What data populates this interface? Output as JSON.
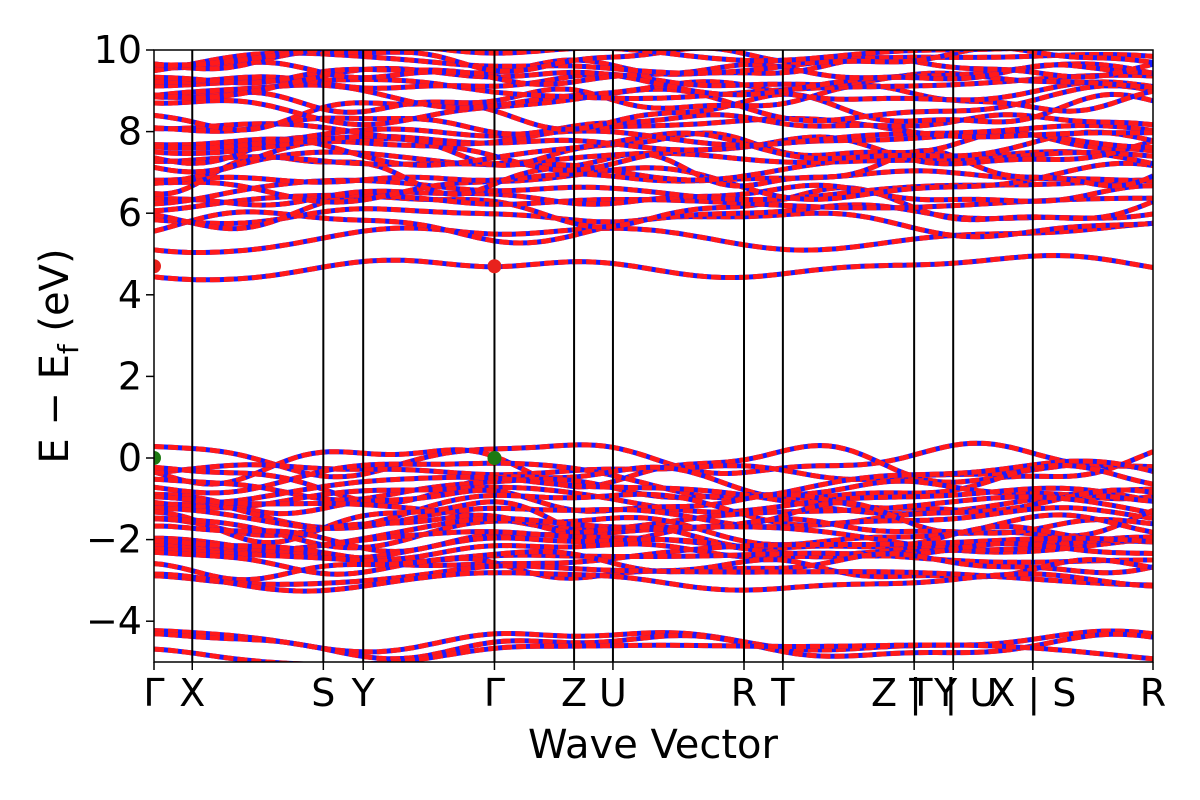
{
  "chart_data": {
    "type": "line",
    "title": "",
    "xlabel": "Wave Vector",
    "ylabel_main": "E − E",
    "ylabel_sub": "f",
    "ylabel_unit": " (eV)",
    "ylim": [
      -5,
      10
    ],
    "yticks": [
      {
        "value": -4,
        "label": "−4"
      },
      {
        "value": -2,
        "label": "−2"
      },
      {
        "value": 0,
        "label": "0"
      },
      {
        "value": 2,
        "label": "2"
      },
      {
        "value": 4,
        "label": "4"
      },
      {
        "value": 6,
        "label": "6"
      },
      {
        "value": 8,
        "label": "8"
      },
      {
        "value": 10,
        "label": "10"
      }
    ],
    "kpath": [
      {
        "k": 0.0,
        "label": "Γ"
      },
      {
        "k": 0.383,
        "label": "X"
      },
      {
        "k": 1.695,
        "label": "S"
      },
      {
        "k": 2.094,
        "label": "Y"
      },
      {
        "k": 3.408,
        "label": "Γ"
      },
      {
        "k": 4.205,
        "label": "Z"
      },
      {
        "k": 4.594,
        "label": "U"
      },
      {
        "k": 5.906,
        "label": "R"
      },
      {
        "k": 6.295,
        "label": "T"
      },
      {
        "k": 7.609,
        "label": "Z | Y"
      },
      {
        "k": 8.0,
        "label": "T | U"
      },
      {
        "k": 8.797,
        "label": "X | S"
      },
      {
        "k": 10.0,
        "label": "R"
      }
    ],
    "extrema": [
      {
        "name": "CBM",
        "k": 0.0,
        "energy": 4.7,
        "color": "#e8221d"
      },
      {
        "name": "CBM",
        "k": 3.408,
        "energy": 4.7,
        "color": "#e8221d"
      },
      {
        "name": "VBM",
        "k": 0.0,
        "energy": 0.0,
        "color": "#1d7a12"
      },
      {
        "name": "VBM",
        "k": 3.408,
        "energy": 0.0,
        "color": "#1d7a12"
      }
    ],
    "series_style": {
      "spin_up_color": "#ff1a1a",
      "spin_down_color": "#1a1aff"
    },
    "bands": {
      "valence_clusters": [
        {
          "base": -0.05,
          "count": 6,
          "spread": 0.9
        },
        {
          "base": -0.9,
          "count": 7,
          "spread": 0.8
        },
        {
          "base": -1.7,
          "count": 7,
          "spread": 0.7
        },
        {
          "base": -2.3,
          "count": 4,
          "spread": 0.6
        },
        {
          "base": -2.9,
          "count": 2,
          "spread": 0.3
        },
        {
          "base": -4.5,
          "count": 3,
          "spread": 0.4
        }
      ],
      "conduction_clusters": [
        {
          "base": 4.7,
          "count": 1,
          "spread": 0.5
        },
        {
          "base": 5.45,
          "count": 2,
          "spread": 0.6
        },
        {
          "base": 6.0,
          "count": 6,
          "spread": 0.9
        },
        {
          "base": 6.9,
          "count": 6,
          "spread": 0.9
        },
        {
          "base": 7.6,
          "count": 5,
          "spread": 0.8
        },
        {
          "base": 8.5,
          "count": 6,
          "spread": 0.9
        },
        {
          "base": 9.3,
          "count": 6,
          "spread": 0.8
        }
      ]
    }
  }
}
